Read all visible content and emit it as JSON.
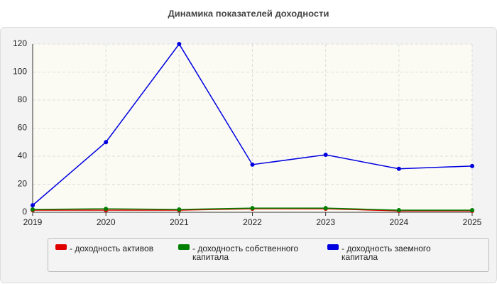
{
  "chart_data": {
    "type": "line",
    "title": "Динамика показателей доходности",
    "x": [
      2019,
      2020,
      2021,
      2022,
      2023,
      2024,
      2025
    ],
    "xlim": [
      2019,
      2025
    ],
    "xticks": [
      2019,
      2020,
      2021,
      2022,
      2023,
      2024,
      2025
    ],
    "ylim": [
      0,
      120
    ],
    "yticks": [
      0,
      20,
      40,
      60,
      80,
      100,
      120
    ],
    "grid": true,
    "series": [
      {
        "name": "- доходность активов",
        "color": "#e00000",
        "values": [
          1.5,
          1.5,
          1.5,
          2.5,
          2.5,
          1,
          1
        ]
      },
      {
        "name": "- доходность собственного капитала",
        "color": "#008000",
        "values": [
          2,
          2.5,
          2,
          3,
          3,
          1.5,
          1.5
        ]
      },
      {
        "name": "- доходность заемного капитала",
        "color": "#0000e0",
        "values": [
          5,
          50,
          120,
          34,
          41,
          31,
          33
        ]
      }
    ]
  }
}
